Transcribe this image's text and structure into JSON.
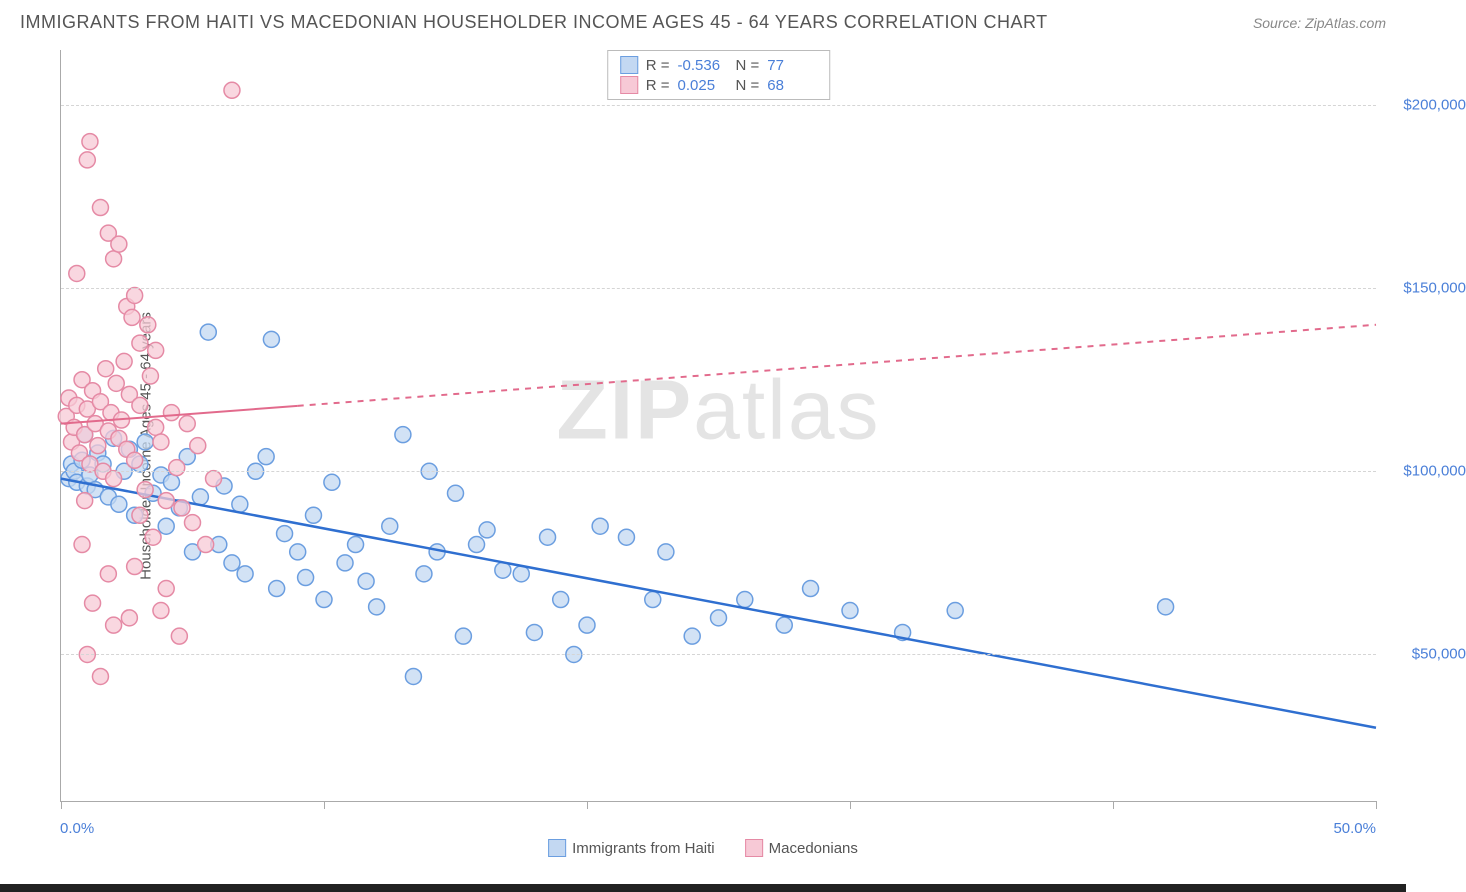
{
  "header": {
    "title": "IMMIGRANTS FROM HAITI VS MACEDONIAN HOUSEHOLDER INCOME AGES 45 - 64 YEARS CORRELATION CHART",
    "source_label": "Source: ZipAtlas.com"
  },
  "watermark": {
    "bold": "ZIP",
    "light": "atlas"
  },
  "chart": {
    "type": "scatter",
    "background_color": "#ffffff",
    "grid_color": "#d5d5d5",
    "axis_color": "#aaaaaa",
    "ylabel": "Householder Income Ages 45 - 64 years",
    "ylabel_fontsize": 15,
    "ylabel_color": "#555555",
    "xlim": [
      0,
      50
    ],
    "ylim": [
      10000,
      215000
    ],
    "yticks": [
      {
        "v": 50000,
        "label": "$50,000"
      },
      {
        "v": 100000,
        "label": "$100,000"
      },
      {
        "v": 150000,
        "label": "$150,000"
      },
      {
        "v": 200000,
        "label": "$200,000"
      }
    ],
    "ytick_color": "#4a7fd8",
    "ytick_fontsize": 15,
    "xtick_positions": [
      0,
      10,
      20,
      30,
      40,
      50
    ],
    "xaxis_left_label": "0.0%",
    "xaxis_right_label": "50.0%",
    "xaxis_label_color": "#4a7fd8",
    "marker_radius": 8,
    "marker_stroke_width": 1.5,
    "series": [
      {
        "name": "Immigrants from Haiti",
        "fill": "#c3d8f2",
        "stroke": "#6b9ee0",
        "fill_opacity": 0.75,
        "trend": {
          "x1": 0,
          "y1": 98000,
          "x2": 50,
          "y2": 30000,
          "solid_until_x": 50,
          "color": "#2f6fd0",
          "width": 2.5
        },
        "stats": {
          "R": "-0.536",
          "N": "77"
        },
        "points": [
          [
            0.3,
            98000
          ],
          [
            0.4,
            102000
          ],
          [
            0.5,
            100000
          ],
          [
            0.6,
            97000
          ],
          [
            0.8,
            103000
          ],
          [
            0.9,
            110000
          ],
          [
            1.0,
            96000
          ],
          [
            1.1,
            99000
          ],
          [
            1.3,
            95000
          ],
          [
            1.4,
            105000
          ],
          [
            1.6,
            102000
          ],
          [
            1.8,
            93000
          ],
          [
            2.0,
            109000
          ],
          [
            2.2,
            91000
          ],
          [
            2.4,
            100000
          ],
          [
            2.6,
            106000
          ],
          [
            2.8,
            88000
          ],
          [
            3.0,
            102000
          ],
          [
            3.2,
            108000
          ],
          [
            3.5,
            94000
          ],
          [
            3.8,
            99000
          ],
          [
            4.0,
            85000
          ],
          [
            4.2,
            97000
          ],
          [
            4.5,
            90000
          ],
          [
            4.8,
            104000
          ],
          [
            5.0,
            78000
          ],
          [
            5.3,
            93000
          ],
          [
            5.6,
            138000
          ],
          [
            6.0,
            80000
          ],
          [
            6.2,
            96000
          ],
          [
            6.5,
            75000
          ],
          [
            6.8,
            91000
          ],
          [
            7.0,
            72000
          ],
          [
            7.4,
            100000
          ],
          [
            7.8,
            104000
          ],
          [
            8.0,
            136000
          ],
          [
            8.2,
            68000
          ],
          [
            8.5,
            83000
          ],
          [
            9.0,
            78000
          ],
          [
            9.3,
            71000
          ],
          [
            9.6,
            88000
          ],
          [
            10.0,
            65000
          ],
          [
            10.3,
            97000
          ],
          [
            10.8,
            75000
          ],
          [
            11.2,
            80000
          ],
          [
            11.6,
            70000
          ],
          [
            12.0,
            63000
          ],
          [
            12.5,
            85000
          ],
          [
            13.0,
            110000
          ],
          [
            13.4,
            44000
          ],
          [
            13.8,
            72000
          ],
          [
            14.0,
            100000
          ],
          [
            14.3,
            78000
          ],
          [
            15.0,
            94000
          ],
          [
            15.3,
            55000
          ],
          [
            15.8,
            80000
          ],
          [
            16.2,
            84000
          ],
          [
            16.8,
            73000
          ],
          [
            17.5,
            72000
          ],
          [
            18.0,
            56000
          ],
          [
            18.5,
            82000
          ],
          [
            19.0,
            65000
          ],
          [
            19.5,
            50000
          ],
          [
            20.0,
            58000
          ],
          [
            20.5,
            85000
          ],
          [
            21.5,
            82000
          ],
          [
            22.5,
            65000
          ],
          [
            23.0,
            78000
          ],
          [
            24.0,
            55000
          ],
          [
            25.0,
            60000
          ],
          [
            26.0,
            65000
          ],
          [
            27.5,
            58000
          ],
          [
            28.5,
            68000
          ],
          [
            30.0,
            62000
          ],
          [
            32.0,
            56000
          ],
          [
            34.0,
            62000
          ],
          [
            42.0,
            63000
          ]
        ]
      },
      {
        "name": "Macedonians",
        "fill": "#f7c9d6",
        "stroke": "#e58aa5",
        "fill_opacity": 0.75,
        "trend": {
          "x1": 0,
          "y1": 113000,
          "x2": 50,
          "y2": 140000,
          "solid_until_x": 9,
          "color": "#e26a8c",
          "width": 2
        },
        "stats": {
          "R": "0.025",
          "N": "68"
        },
        "points": [
          [
            0.2,
            115000
          ],
          [
            0.3,
            120000
          ],
          [
            0.4,
            108000
          ],
          [
            0.5,
            112000
          ],
          [
            0.6,
            118000
          ],
          [
            0.7,
            105000
          ],
          [
            0.8,
            125000
          ],
          [
            0.9,
            110000
          ],
          [
            1.0,
            117000
          ],
          [
            1.1,
            102000
          ],
          [
            1.2,
            122000
          ],
          [
            1.3,
            113000
          ],
          [
            1.4,
            107000
          ],
          [
            1.5,
            119000
          ],
          [
            1.6,
            100000
          ],
          [
            1.7,
            128000
          ],
          [
            1.8,
            111000
          ],
          [
            1.9,
            116000
          ],
          [
            2.0,
            98000
          ],
          [
            2.1,
            124000
          ],
          [
            2.2,
            109000
          ],
          [
            2.3,
            114000
          ],
          [
            2.4,
            130000
          ],
          [
            2.5,
            106000
          ],
          [
            2.6,
            121000
          ],
          [
            2.8,
            103000
          ],
          [
            3.0,
            118000
          ],
          [
            3.2,
            95000
          ],
          [
            3.4,
            126000
          ],
          [
            3.6,
            112000
          ],
          [
            3.8,
            108000
          ],
          [
            4.0,
            92000
          ],
          [
            4.2,
            116000
          ],
          [
            4.4,
            101000
          ],
          [
            4.6,
            90000
          ],
          [
            4.8,
            113000
          ],
          [
            5.0,
            86000
          ],
          [
            5.2,
            107000
          ],
          [
            5.5,
            80000
          ],
          [
            5.8,
            98000
          ],
          [
            1.0,
            185000
          ],
          [
            1.1,
            190000
          ],
          [
            1.5,
            172000
          ],
          [
            1.8,
            165000
          ],
          [
            2.0,
            158000
          ],
          [
            2.2,
            162000
          ],
          [
            2.5,
            145000
          ],
          [
            2.7,
            142000
          ],
          [
            2.8,
            148000
          ],
          [
            3.0,
            135000
          ],
          [
            3.3,
            140000
          ],
          [
            3.6,
            133000
          ],
          [
            0.6,
            154000
          ],
          [
            6.5,
            204000
          ],
          [
            2.8,
            74000
          ],
          [
            1.2,
            64000
          ],
          [
            0.8,
            80000
          ],
          [
            3.5,
            82000
          ],
          [
            4.0,
            68000
          ],
          [
            1.5,
            44000
          ],
          [
            1.0,
            50000
          ],
          [
            2.0,
            58000
          ],
          [
            3.8,
            62000
          ],
          [
            4.5,
            55000
          ],
          [
            1.8,
            72000
          ],
          [
            0.9,
            92000
          ],
          [
            3.0,
            88000
          ],
          [
            2.6,
            60000
          ]
        ]
      }
    ]
  },
  "stats_box": {
    "R_label": "R =",
    "N_label": "N =",
    "label_color": "#555555",
    "value_color": "#4a7fd8"
  },
  "legend": {
    "items": [
      {
        "label": "Immigrants from Haiti",
        "fill": "#c3d8f2",
        "stroke": "#6b9ee0"
      },
      {
        "label": "Macedonians",
        "fill": "#f7c9d6",
        "stroke": "#e58aa5"
      }
    ]
  }
}
